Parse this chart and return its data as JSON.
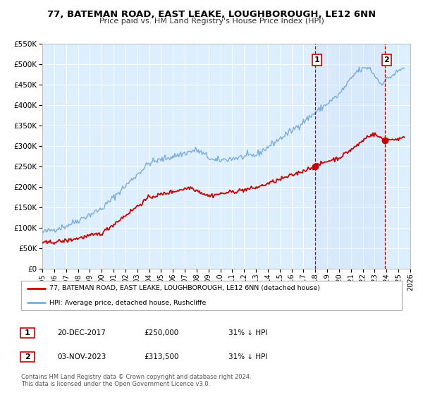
{
  "title": "77, BATEMAN ROAD, EAST LEAKE, LOUGHBOROUGH, LE12 6NN",
  "subtitle": "Price paid vs. HM Land Registry's House Price Index (HPI)",
  "legend_property": "77, BATEMAN ROAD, EAST LEAKE, LOUGHBOROUGH, LE12 6NN (detached house)",
  "legend_hpi": "HPI: Average price, detached house, Rushcliffe",
  "footnote1": "Contains HM Land Registry data © Crown copyright and database right 2024.",
  "footnote2": "This data is licensed under the Open Government Licence v3.0.",
  "sale1_label": "1",
  "sale1_date": "20-DEC-2017",
  "sale1_price": "£250,000",
  "sale1_hpi": "31% ↓ HPI",
  "sale1_year": 2017.97,
  "sale1_value": 250000,
  "sale2_label": "2",
  "sale2_date": "03-NOV-2023",
  "sale2_price": "£313,500",
  "sale2_hpi": "31% ↓ HPI",
  "sale2_year": 2023.84,
  "sale2_value": 313500,
  "property_color": "#cc0000",
  "hpi_color": "#7aaddc",
  "vline_color": "#cc0000",
  "dot_color": "#cc0000",
  "shade_color": "#cce0f5",
  "bg_color": "#ddeeff",
  "ylim": [
    0,
    550000
  ],
  "xlim": [
    1995,
    2026
  ],
  "yticks": [
    0,
    50000,
    100000,
    150000,
    200000,
    250000,
    300000,
    350000,
    400000,
    450000,
    500000,
    550000
  ],
  "xticks": [
    1995,
    1996,
    1997,
    1998,
    1999,
    2000,
    2001,
    2002,
    2003,
    2004,
    2005,
    2006,
    2007,
    2008,
    2009,
    2010,
    2011,
    2012,
    2013,
    2014,
    2015,
    2016,
    2017,
    2018,
    2019,
    2020,
    2021,
    2022,
    2023,
    2024,
    2025,
    2026
  ]
}
